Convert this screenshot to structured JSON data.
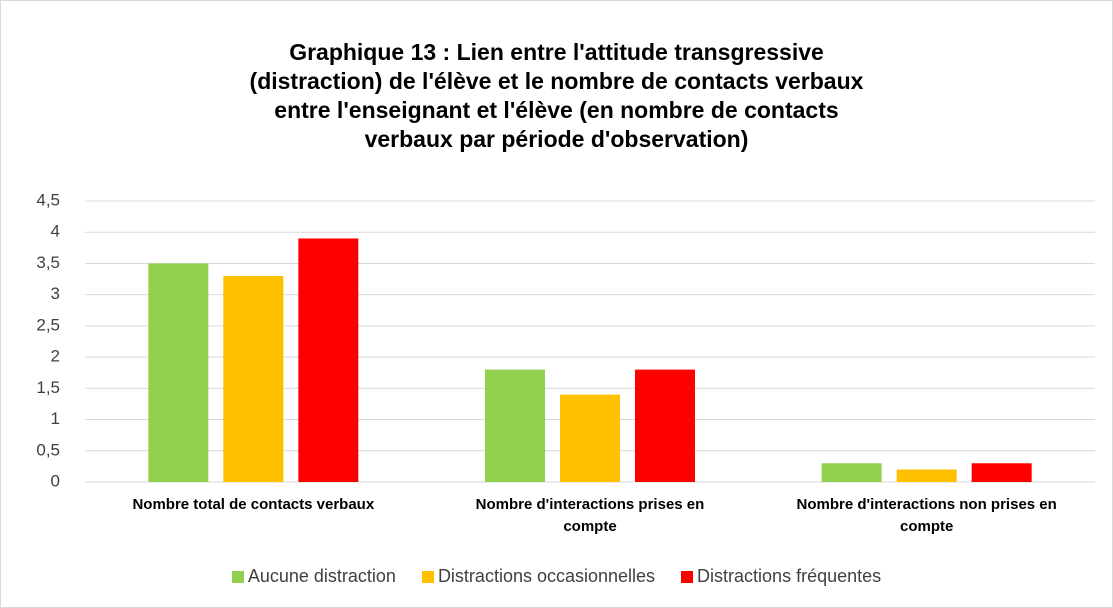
{
  "chart_data": {
    "type": "bar",
    "title": "Graphique 13 : Lien entre l'attitude transgressive (distraction) de l'élève et le nombre de contacts verbaux entre l'enseignant et l'élève (en nombre de contacts verbaux par période d'observation)",
    "categories": [
      "Nombre total de contacts verbaux",
      "Nombre d'interactions prises en compte",
      "Nombre d'interactions non prises en compte"
    ],
    "series": [
      {
        "name": "Aucune distraction",
        "color": "#92d050",
        "values": [
          3.5,
          1.8,
          0.3
        ]
      },
      {
        "name": "Distractions occasionnelles",
        "color": "#ffc000",
        "values": [
          3.3,
          1.4,
          0.2
        ]
      },
      {
        "name": "Distractions fréquentes",
        "color": "#ff0000",
        "values": [
          3.9,
          1.8,
          0.3
        ]
      }
    ],
    "ylim": [
      0,
      4.5
    ],
    "yticks": [
      0,
      {
        "value": 0.5,
        "label": "0,5"
      },
      1,
      {
        "value": 1.5,
        "label": "1,5"
      },
      2,
      {
        "value": 2.5,
        "label": "2,5"
      },
      3,
      {
        "value": 3.5,
        "label": "3,5"
      },
      4,
      {
        "value": 4.5,
        "label": "4,5"
      }
    ],
    "grid": true,
    "legend": "bottom"
  }
}
